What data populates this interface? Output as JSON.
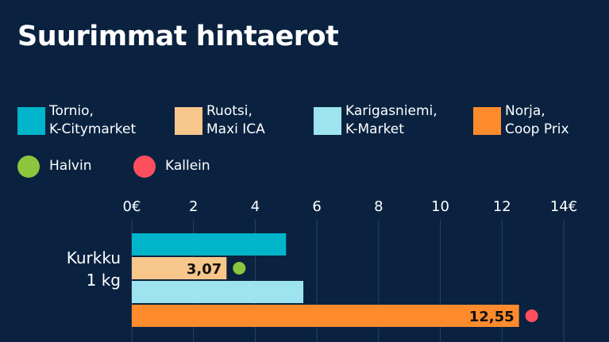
{
  "chart_data": {
    "type": "bar",
    "orientation": "horizontal",
    "title": "Suurimmat hintaerot",
    "categories": [
      "Kurkku\n1 kg"
    ],
    "series": [
      {
        "name": "Tornio,\nK-Citymarket",
        "color": "#00b4c9",
        "values": [
          5.0
        ]
      },
      {
        "name": "Ruotsi,\nMaxi ICA",
        "color": "#f7c68b",
        "values": [
          3.07
        ],
        "value_labels": [
          "3,07"
        ]
      },
      {
        "name": "Karigasniemi,\nK-Market",
        "color": "#9ee4ef",
        "values": [
          5.56
        ]
      },
      {
        "name": "Norja,\nCoop Prix",
        "color": "#ff8b2d",
        "values": [
          12.55
        ],
        "value_labels": [
          "12,55"
        ]
      }
    ],
    "markers": [
      {
        "name": "Halvin",
        "color": "#8cc63f",
        "rule": "min"
      },
      {
        "name": "Kallein",
        "color": "#ff4f5f",
        "rule": "max"
      }
    ],
    "xlim": [
      0,
      14
    ],
    "xticks": [
      {
        "value": 0,
        "label": "0€"
      },
      2,
      4,
      6,
      8,
      10,
      12,
      {
        "value": 14,
        "label": "14€"
      }
    ],
    "grid": true
  }
}
